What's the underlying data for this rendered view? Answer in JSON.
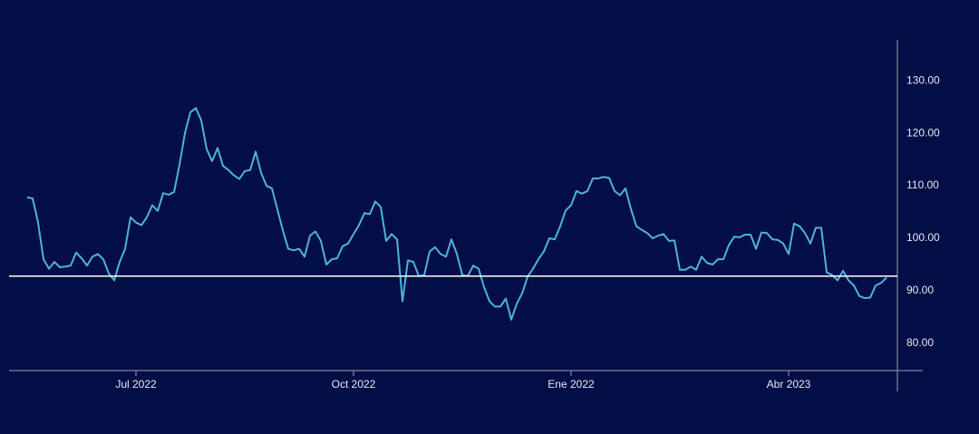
{
  "chart_data": {
    "type": "line",
    "categories": [
      null,
      null,
      null,
      null,
      null,
      null,
      null,
      null,
      null,
      null,
      null,
      null,
      null,
      null,
      null,
      null,
      null,
      null,
      null,
      null,
      "Jul 2022",
      null,
      null,
      null,
      null,
      null,
      null,
      null,
      null,
      null,
      null,
      null,
      null,
      null,
      null,
      null,
      null,
      null,
      null,
      null,
      null,
      null,
      null,
      null,
      null,
      null,
      null,
      null,
      null,
      null,
      null,
      null,
      null,
      null,
      null,
      null,
      null,
      null,
      null,
      null,
      "Oct 2022",
      null,
      null,
      null,
      null,
      null,
      null,
      null,
      null,
      null,
      null,
      null,
      null,
      null,
      null,
      null,
      null,
      null,
      null,
      null,
      null,
      null,
      null,
      null,
      null,
      null,
      null,
      null,
      null,
      null,
      null,
      null,
      null,
      null,
      null,
      null,
      null,
      null,
      null,
      null,
      "Ene 2022",
      null,
      null,
      null,
      null,
      null,
      null,
      null,
      null,
      null,
      null,
      null,
      null,
      null,
      null,
      null,
      null,
      null,
      null,
      null,
      null,
      null,
      null,
      null,
      null,
      null,
      null,
      null,
      null,
      null,
      null,
      null,
      null,
      null,
      null,
      null,
      null,
      null,
      null,
      null,
      "Abr 2023",
      null,
      null,
      null,
      null,
      null,
      null,
      null,
      null,
      null,
      null,
      null,
      null,
      null,
      null,
      null,
      null,
      null,
      null
    ],
    "series": [
      {
        "color": "#4fb3dc",
        "values": [
          107.8,
          107.6,
          103,
          96,
          94.2,
          95.5,
          94.5,
          94.6,
          94.8,
          97.3,
          96.2,
          94.8,
          96.5,
          97,
          96,
          93.3,
          92,
          95.5,
          98,
          104,
          103,
          102.5,
          104,
          106.3,
          105.2,
          108.6,
          108.3,
          108.8,
          114,
          120,
          124,
          124.8,
          122.5,
          117,
          114.7,
          117.2,
          113.8,
          113,
          112,
          111.3,
          112.8,
          113,
          116.5,
          112.5,
          110,
          109.5,
          105.5,
          101.5,
          98,
          97.7,
          98,
          96.5,
          100.5,
          101.3,
          99.5,
          95,
          96,
          96.2,
          98.5,
          99,
          100.8,
          102.5,
          104.8,
          104.6,
          107,
          106,
          99.5,
          100.8,
          99.8,
          88,
          95.8,
          95.5,
          92.8,
          93,
          97.5,
          98.3,
          97,
          96.5,
          99.8,
          97,
          93,
          92.8,
          94.8,
          94.2,
          90.7,
          88,
          87,
          87,
          88.5,
          84.5,
          87.5,
          89.5,
          92.7,
          94.2,
          96,
          97.5,
          100,
          99.8,
          102.3,
          105.3,
          106.3,
          109,
          108.5,
          109,
          111.4,
          111.4,
          111.7,
          111.5,
          109,
          108.2,
          109.5,
          105.6,
          102.3,
          101.6,
          101,
          100,
          100.5,
          100.8,
          99.5,
          99.6,
          94,
          94,
          94.6,
          94,
          96.5,
          95.3,
          95,
          96,
          96,
          98.7,
          100.3,
          100.2,
          100.7,
          100.7,
          98,
          101.1,
          101,
          99.8,
          99.7,
          99,
          97,
          102.8,
          102.3,
          101,
          99,
          102,
          102,
          93.5,
          93,
          92,
          93.8,
          92,
          91,
          89,
          88.6,
          88.7,
          91,
          91.5,
          92.5
        ]
      }
    ],
    "reference_line": 92.8,
    "reference_color": "#ffffff",
    "ylim": [
      74.8,
      137.8
    ],
    "yticks": [
      {
        "value": 80,
        "label": "80.00"
      },
      {
        "value": 90,
        "label": "90.00"
      },
      {
        "value": 100,
        "label": "100.00"
      },
      {
        "value": 110,
        "label": "110.00"
      },
      {
        "value": 120,
        "label": "120.00"
      },
      {
        "value": 130,
        "label": "130.00"
      }
    ]
  }
}
